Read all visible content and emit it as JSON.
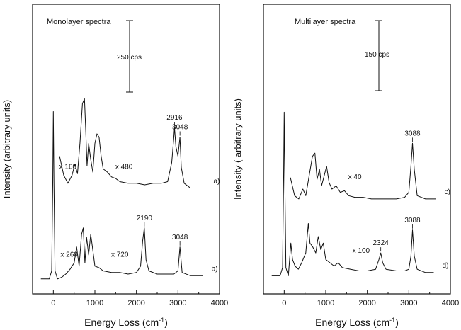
{
  "chart_data": [
    {
      "type": "line",
      "panel": "left",
      "title": "Monolayer spectra",
      "xlabel": "Energy Loss (cm",
      "xlabel_sup": "-1",
      "xlabel_close": ")",
      "ylabel": "Intensity (arbitrary units)",
      "xlim": [
        -500,
        4000
      ],
      "xticks": [
        0,
        1000,
        2000,
        3000,
        4000
      ],
      "grid": false,
      "scale_bar": {
        "label": "250 cps"
      },
      "series": [
        {
          "id": "a",
          "tag": "a)",
          "offset": 0.6,
          "multipliers": [
            {
              "label": "x 160",
              "x": 350
            },
            {
              "label": "x 480",
              "x": 1700
            }
          ],
          "x": [
            150,
            250,
            350,
            450,
            520,
            580,
            640,
            700,
            750,
            780,
            810,
            850,
            900,
            950,
            1000,
            1050,
            1100,
            1150,
            1200,
            1300,
            1400,
            1500,
            1600,
            1800,
            2000,
            2200,
            2400,
            2600,
            2750,
            2850,
            2900,
            2916,
            2950,
            3000,
            3048,
            3080,
            3150,
            3300,
            3500,
            3650
          ],
          "y": [
            0.22,
            0.1,
            0.05,
            0.1,
            0.17,
            0.11,
            0.3,
            0.55,
            0.58,
            0.38,
            0.16,
            0.3,
            0.2,
            0.12,
            0.3,
            0.36,
            0.34,
            0.22,
            0.14,
            0.12,
            0.09,
            0.08,
            0.06,
            0.05,
            0.05,
            0.04,
            0.05,
            0.05,
            0.06,
            0.18,
            0.34,
            0.4,
            0.28,
            0.22,
            0.34,
            0.15,
            0.05,
            0.02,
            0.02,
            0.02
          ],
          "peaks": [
            {
              "label": "2916",
              "x": 2916
            },
            {
              "label": "3048",
              "x": 3048
            }
          ]
        },
        {
          "id": "b",
          "tag": "b)",
          "offset": 0.05,
          "multipliers": [
            {
              "label": "x 260",
              "x": 380
            },
            {
              "label": "x 720",
              "x": 1600
            }
          ],
          "x": [
            -300,
            -100,
            -40,
            -15,
            0,
            15,
            40,
            100,
            200,
            300,
            400,
            500,
            560,
            620,
            680,
            720,
            760,
            800,
            850,
            900,
            950,
            1000,
            1100,
            1200,
            1400,
            1600,
            1800,
            2000,
            2100,
            2150,
            2190,
            2230,
            2300,
            2500,
            2700,
            2900,
            3000,
            3048,
            3100,
            3300,
            3600
          ],
          "y": [
            0.0,
            0.0,
            0.05,
            0.6,
            1.05,
            0.6,
            0.05,
            0.0,
            0.01,
            0.03,
            0.06,
            0.1,
            0.2,
            0.08,
            0.28,
            0.32,
            0.1,
            0.26,
            0.15,
            0.28,
            0.18,
            0.08,
            0.07,
            0.05,
            0.04,
            0.04,
            0.03,
            0.04,
            0.08,
            0.24,
            0.32,
            0.12,
            0.05,
            0.03,
            0.03,
            0.03,
            0.05,
            0.2,
            0.04,
            0.02,
            0.02
          ],
          "peaks": [
            {
              "label": "2190",
              "x": 2190
            },
            {
              "label": "3048",
              "x": 3048
            }
          ]
        }
      ]
    },
    {
      "type": "line",
      "panel": "right",
      "title": "Multilayer spectra",
      "xlabel": "Energy Loss (cm",
      "xlabel_sup": "-1",
      "xlabel_close": ")",
      "ylabel": "Intensity ( arbitrary units)",
      "xlim": [
        -500,
        4000
      ],
      "xticks": [
        0,
        1000,
        2000,
        3000,
        4000
      ],
      "grid": false,
      "scale_bar": {
        "label": "150 cps"
      },
      "series": [
        {
          "id": "c",
          "tag": "c)",
          "offset": 0.5,
          "multipliers": [
            {
              "label": "x 40",
              "x": 1700
            }
          ],
          "x": [
            150,
            250,
            350,
            450,
            520,
            600,
            680,
            740,
            790,
            850,
            900,
            960,
            1020,
            1080,
            1150,
            1250,
            1350,
            1450,
            1550,
            1700,
            1900,
            2100,
            2400,
            2700,
            2900,
            3000,
            3050,
            3088,
            3130,
            3200,
            3400,
            3650
          ],
          "y": [
            0.15,
            0.04,
            0.02,
            0.08,
            0.04,
            0.16,
            0.28,
            0.3,
            0.14,
            0.2,
            0.1,
            0.16,
            0.22,
            0.12,
            0.08,
            0.1,
            0.06,
            0.07,
            0.04,
            0.03,
            0.03,
            0.02,
            0.02,
            0.02,
            0.03,
            0.06,
            0.22,
            0.36,
            0.2,
            0.04,
            0.02,
            0.02
          ],
          "peaks": [
            {
              "label": "3088",
              "x": 3088
            }
          ]
        },
        {
          "id": "d",
          "tag": "d)",
          "offset": 0.05,
          "multipliers": [
            {
              "label": "x 100",
              "x": 1850
            }
          ],
          "x": [
            -300,
            -100,
            -40,
            -15,
            0,
            15,
            40,
            100,
            160,
            200,
            260,
            340,
            420,
            520,
            580,
            620,
            680,
            760,
            820,
            880,
            940,
            1000,
            1100,
            1200,
            1300,
            1400,
            1600,
            1800,
            2000,
            2200,
            2280,
            2324,
            2370,
            2450,
            2700,
            2900,
            3000,
            3050,
            3088,
            3130,
            3200,
            3400,
            3600
          ],
          "y": [
            0.0,
            0.0,
            0.05,
            0.6,
            1.0,
            0.6,
            0.05,
            0.0,
            0.2,
            0.1,
            0.06,
            0.04,
            0.08,
            0.14,
            0.32,
            0.2,
            0.18,
            0.14,
            0.24,
            0.16,
            0.2,
            0.1,
            0.08,
            0.06,
            0.08,
            0.05,
            0.04,
            0.03,
            0.03,
            0.04,
            0.1,
            0.14,
            0.08,
            0.04,
            0.03,
            0.03,
            0.04,
            0.12,
            0.28,
            0.12,
            0.04,
            0.02,
            0.02
          ],
          "peaks": [
            {
              "label": "2324",
              "x": 2324
            },
            {
              "label": "3088",
              "x": 3088
            }
          ]
        }
      ]
    }
  ]
}
